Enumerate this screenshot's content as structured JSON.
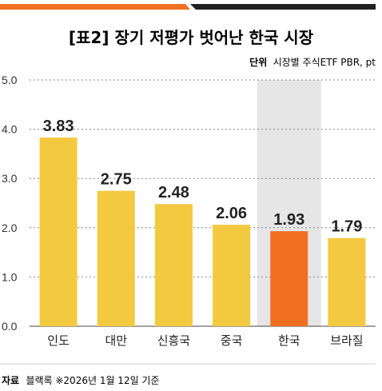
{
  "title": "[표2] 장기 저평가 벗어난 한국 시장",
  "unit": {
    "label": "단위",
    "text": "시장별 주식ETF PBR, pt"
  },
  "source": {
    "label": "자료",
    "text": "블랙록 ※2026년 1월 12일 기준"
  },
  "colors": {
    "accent": "#f26f21",
    "dark": "#222222",
    "bar": "#f3c93f",
    "highlight_bar": "#f26f21",
    "highlight_band": "#e6e6e6",
    "grid": "#888888"
  },
  "chart_data": {
    "type": "bar",
    "categories": [
      "인도",
      "대만",
      "신흥국",
      "중국",
      "한국",
      "브라질"
    ],
    "values": [
      3.83,
      2.75,
      2.48,
      2.06,
      1.93,
      1.79
    ],
    "value_labels": [
      "3.83",
      "2.75",
      "2.48",
      "2.06",
      "1.93",
      "1.79"
    ],
    "highlight_category": "한국",
    "ylim": [
      0,
      5
    ],
    "yticks": [
      "0.0",
      "1.0",
      "2.0",
      "3.0",
      "4.0",
      "5.0"
    ],
    "grid": "horizontal dashed"
  }
}
